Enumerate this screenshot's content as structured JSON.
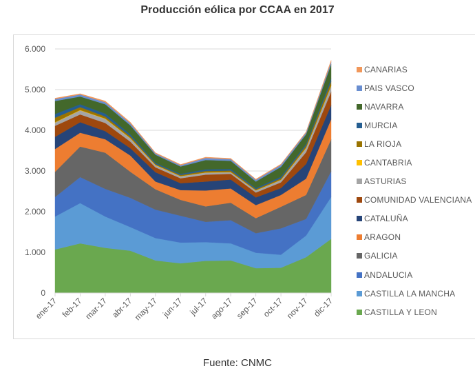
{
  "title": "Producción eólica por CCAA en 2017",
  "footer": "Fuente: CNMC",
  "chart_data": {
    "type": "area",
    "stacked": true,
    "title": "Producción eólica por CCAA en 2017",
    "xlabel": "",
    "ylabel": "",
    "x": [
      "ene-17",
      "feb-17",
      "mar-17",
      "abr-17",
      "may-17",
      "jun-17",
      "jul-17",
      "ago-17",
      "sep-17",
      "oct-17",
      "nov-17",
      "dic-17"
    ],
    "ylim": [
      0,
      6000
    ],
    "yticks": [
      0,
      1000,
      2000,
      3000,
      4000,
      5000,
      6000
    ],
    "ytick_labels": [
      "0",
      "1.000",
      "2.000",
      "3.000",
      "4.000",
      "5.000",
      "6.000"
    ],
    "grid": true,
    "legend_position": "right",
    "series": [
      {
        "name": "CASTILLA Y LEON",
        "color": "#6aa84f",
        "values": [
          1070,
          1220,
          1110,
          1040,
          800,
          730,
          790,
          800,
          610,
          620,
          880,
          1330
        ]
      },
      {
        "name": "CASTILLA LA MANCHA",
        "color": "#5b9bd5",
        "values": [
          810,
          990,
          770,
          580,
          550,
          510,
          460,
          420,
          380,
          320,
          530,
          1030
        ]
      },
      {
        "name": "ANDALUCIA",
        "color": "#4472c4",
        "values": [
          480,
          640,
          680,
          720,
          700,
          660,
          500,
          570,
          480,
          650,
          410,
          630
        ]
      },
      {
        "name": "GALICIA",
        "color": "#666666",
        "values": [
          620,
          750,
          890,
          640,
          500,
          390,
          380,
          430,
          370,
          530,
          590,
          790
        ]
      },
      {
        "name": "ARAGON",
        "color": "#ed7d31",
        "values": [
          560,
          340,
          330,
          400,
          190,
          240,
          390,
          350,
          320,
          290,
          400,
          490
        ]
      },
      {
        "name": "CATALUÑA",
        "color": "#264478",
        "values": [
          300,
          260,
          200,
          180,
          230,
          170,
          220,
          220,
          190,
          170,
          360,
          350
        ]
      },
      {
        "name": "COMUNIDAD VALENCIANA",
        "color": "#9e480e",
        "values": [
          270,
          190,
          200,
          160,
          120,
          120,
          170,
          140,
          120,
          140,
          290,
          330
        ]
      },
      {
        "name": "ASTURIAS",
        "color": "#a5a5a5",
        "values": [
          80,
          100,
          100,
          80,
          50,
          50,
          50,
          40,
          50,
          60,
          100,
          140
        ]
      },
      {
        "name": "CANTABRIA",
        "color": "#ffc000",
        "values": [
          10,
          10,
          10,
          10,
          10,
          5,
          5,
          5,
          5,
          5,
          10,
          10
        ]
      },
      {
        "name": "LA RIOJA",
        "color": "#997300",
        "values": [
          110,
          70,
          50,
          40,
          20,
          25,
          35,
          35,
          25,
          35,
          50,
          100
        ]
      },
      {
        "name": "MURCIA",
        "color": "#255e91",
        "values": [
          90,
          70,
          70,
          50,
          30,
          30,
          40,
          40,
          30,
          40,
          40,
          70
        ]
      },
      {
        "name": "NAVARRA",
        "color": "#43682b",
        "values": [
          320,
          190,
          230,
          220,
          200,
          180,
          230,
          200,
          160,
          240,
          240,
          350
        ]
      },
      {
        "name": "PAIS VASCO",
        "color": "#698ed0",
        "values": [
          50,
          50,
          50,
          50,
          30,
          30,
          50,
          40,
          40,
          50,
          40,
          60
        ]
      },
      {
        "name": "CANARIAS",
        "color": "#f1975a",
        "values": [
          20,
          20,
          30,
          30,
          20,
          20,
          20,
          20,
          20,
          20,
          20,
          40
        ]
      }
    ]
  },
  "legend_order": [
    "CANARIAS",
    "PAIS VASCO",
    "NAVARRA",
    "MURCIA",
    "LA RIOJA",
    "CANTABRIA",
    "ASTURIAS",
    "COMUNIDAD VALENCIANA",
    "CATALUÑA",
    "ARAGON",
    "GALICIA",
    "ANDALUCIA",
    "CASTILLA LA MANCHA",
    "CASTILLA Y LEON"
  ]
}
